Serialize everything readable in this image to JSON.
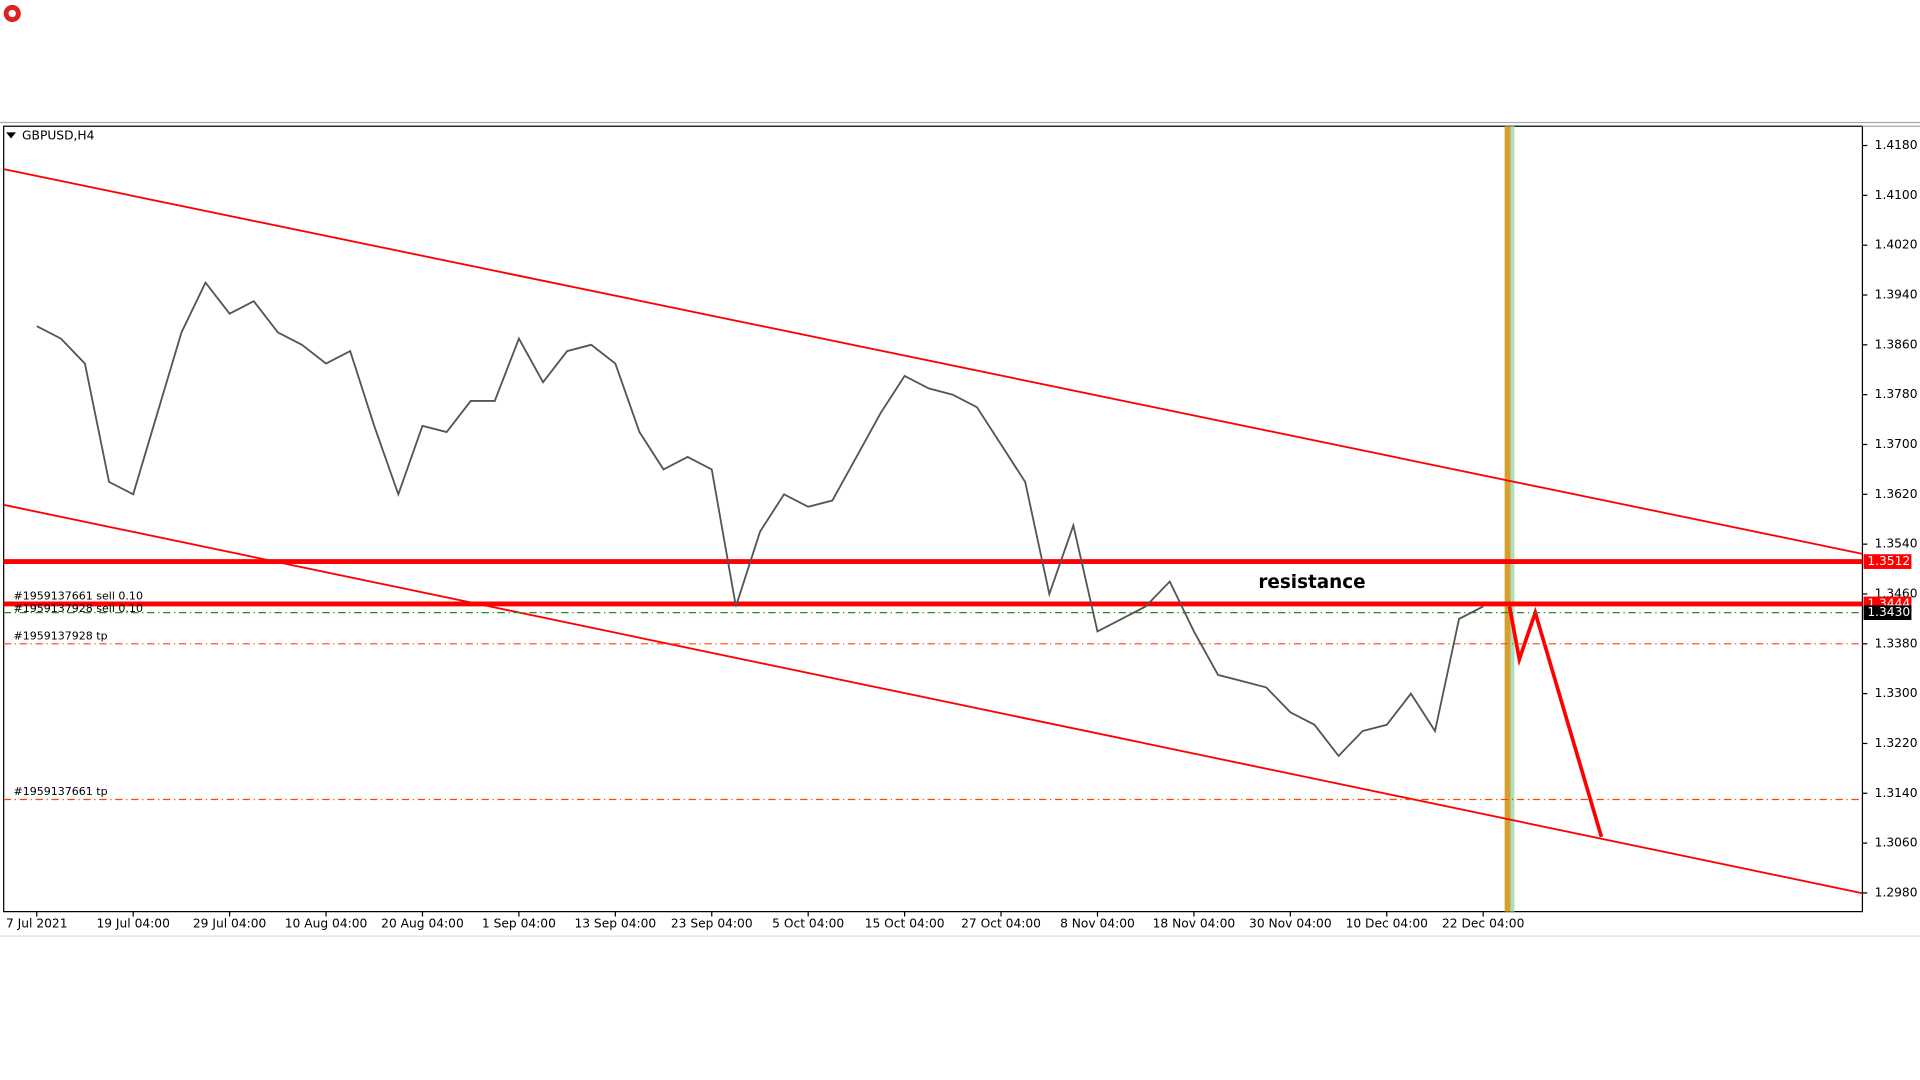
{
  "chart_data": {
    "type": "line",
    "title": "GBPUSD,H4",
    "annotation": "resistance",
    "color": "#555555",
    "categories": [
      "7 Jul 2021",
      null,
      null,
      null,
      "19 Jul 04:00",
      null,
      null,
      null,
      "29 Jul 04:00",
      null,
      null,
      null,
      "10 Aug 04:00",
      null,
      null,
      null,
      "20 Aug 04:00",
      null,
      null,
      null,
      "1 Sep 04:00",
      null,
      null,
      null,
      "13 Sep 04:00",
      null,
      null,
      null,
      "23 Sep 04:00",
      null,
      null,
      null,
      "5 Oct 04:00",
      null,
      null,
      null,
      "15 Oct 04:00",
      null,
      null,
      null,
      "27 Oct 04:00",
      null,
      null,
      null,
      "8 Nov 04:00",
      null,
      null,
      null,
      "18 Nov 04:00",
      null,
      null,
      null,
      "30 Nov 04:00",
      null,
      null,
      null,
      "10 Dec 04:00",
      null,
      null,
      null,
      "22 Dec 04:00"
    ],
    "values": [
      1.389,
      1.387,
      1.383,
      1.364,
      1.362,
      1.375,
      1.388,
      1.396,
      1.391,
      1.393,
      1.388,
      1.386,
      1.383,
      1.385,
      1.373,
      1.362,
      1.373,
      1.372,
      1.377,
      1.377,
      1.387,
      1.38,
      1.385,
      1.386,
      1.383,
      1.372,
      1.366,
      1.368,
      1.366,
      1.344,
      1.356,
      1.362,
      1.36,
      1.361,
      1.368,
      1.375,
      1.381,
      1.379,
      1.378,
      1.376,
      1.37,
      1.364,
      1.346,
      1.357,
      1.34,
      1.342,
      1.344,
      1.348,
      1.34,
      1.333,
      1.332,
      1.331,
      1.327,
      1.325,
      1.32,
      1.324,
      1.325,
      1.33,
      1.324,
      1.342,
      1.344
    ],
    "ylim": [
      1.295,
      1.4211
    ],
    "yticks": [
      {
        "value": 1.418,
        "label": "1.4180"
      },
      {
        "value": 1.41,
        "label": "1.4100"
      },
      {
        "value": 1.402,
        "label": "1.4020"
      },
      {
        "value": 1.394,
        "label": "1.3940"
      },
      {
        "value": 1.386,
        "label": "1.3860"
      },
      {
        "value": 1.378,
        "label": "1.3780"
      },
      {
        "value": 1.37,
        "label": "1.3700"
      },
      {
        "value": 1.362,
        "label": "1.3620"
      },
      {
        "value": 1.354,
        "label": "1.3540"
      },
      {
        "value": 1.346,
        "label": "1.3460"
      },
      {
        "value": 1.338,
        "label": "1.3380"
      },
      {
        "value": 1.33,
        "label": "1.3300"
      },
      {
        "value": 1.322,
        "label": "1.3220"
      },
      {
        "value": 1.314,
        "label": "1.3140"
      },
      {
        "value": 1.306,
        "label": "1.3060"
      },
      {
        "value": 1.298,
        "label": "1.2980"
      }
    ],
    "levels": [
      {
        "value": 1.3512,
        "color": "#ff0000"
      },
      {
        "value": 1.3444,
        "color": "#ff0000"
      },
      {
        "value": 1.343,
        "label": "1.3430",
        "color": "#000000"
      }
    ],
    "orders": [
      {
        "label": "#1959137661 sell 0.10",
        "price": 1.3444,
        "color": "#ff0000"
      },
      {
        "label": "#1959137928 sell 0.10",
        "price": 1.343,
        "color": "#228b22"
      },
      {
        "label": "#1959137928 tp",
        "price": 1.338,
        "color": "#ff4500"
      },
      {
        "label": "#1959137661 tp",
        "price": 1.313,
        "color": "#ff4500"
      }
    ]
  }
}
